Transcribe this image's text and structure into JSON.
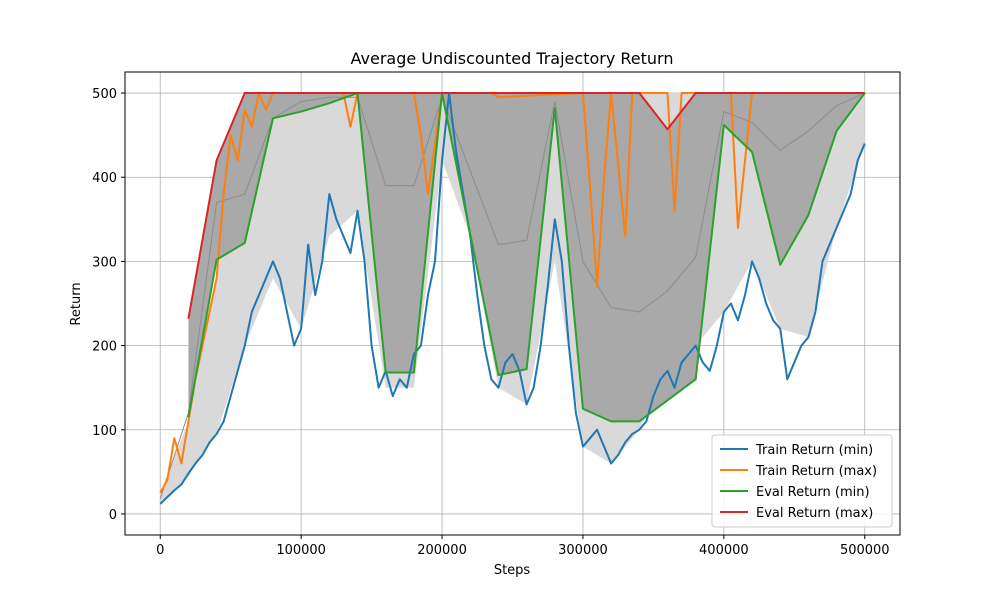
{
  "chart_data": {
    "type": "line",
    "title": "Average Undiscounted Trajectory Return",
    "xlabel": "Steps",
    "ylabel": "Return",
    "xlim": [
      -25000,
      525000
    ],
    "ylim": [
      -25,
      525
    ],
    "xticks": [
      0,
      100000,
      200000,
      300000,
      400000,
      500000
    ],
    "xtick_labels": [
      "0",
      "100000",
      "200000",
      "300000",
      "400000",
      "500000"
    ],
    "yticks": [
      0,
      100,
      200,
      300,
      400,
      500
    ],
    "ytick_labels": [
      "0",
      "100",
      "200",
      "300",
      "400",
      "500"
    ],
    "grid": true,
    "legend_position": "lower-right",
    "colors": {
      "train_min": "#1f77b4",
      "train_max": "#ff7f0e",
      "eval_min": "#2ca02c",
      "eval_max": "#d62728",
      "band_light": "#d9d9d9",
      "band_dark": "#a9a9a9",
      "mean_gray": "#8c8c8c"
    },
    "series": [
      {
        "name": "Train Return (min)",
        "x": [
          0,
          5000,
          10000,
          15000,
          20000,
          25000,
          30000,
          35000,
          40000,
          45000,
          50000,
          55000,
          60000,
          65000,
          70000,
          75000,
          80000,
          85000,
          90000,
          95000,
          100000,
          105000,
          110000,
          115000,
          120000,
          125000,
          130000,
          135000,
          140000,
          145000,
          150000,
          155000,
          160000,
          165000,
          170000,
          175000,
          180000,
          185000,
          190000,
          195000,
          200000,
          205000,
          210000,
          215000,
          220000,
          225000,
          230000,
          235000,
          240000,
          245000,
          250000,
          255000,
          260000,
          265000,
          270000,
          275000,
          280000,
          285000,
          290000,
          295000,
          300000,
          305000,
          310000,
          315000,
          320000,
          325000,
          330000,
          335000,
          340000,
          345000,
          350000,
          355000,
          360000,
          365000,
          370000,
          375000,
          380000,
          385000,
          390000,
          395000,
          400000,
          405000,
          410000,
          415000,
          420000,
          425000,
          430000,
          435000,
          440000,
          445000,
          450000,
          455000,
          460000,
          465000,
          470000,
          475000,
          480000,
          485000,
          490000,
          495000,
          500000
        ],
        "values": [
          12,
          20,
          28,
          35,
          48,
          60,
          70,
          85,
          95,
          110,
          140,
          170,
          200,
          240,
          260,
          280,
          300,
          280,
          240,
          200,
          220,
          320,
          260,
          300,
          380,
          350,
          330,
          310,
          360,
          300,
          200,
          150,
          170,
          140,
          160,
          150,
          190,
          200,
          260,
          300,
          420,
          500,
          430,
          380,
          330,
          260,
          200,
          160,
          150,
          180,
          190,
          170,
          130,
          150,
          200,
          270,
          350,
          300,
          200,
          120,
          80,
          90,
          100,
          80,
          60,
          70,
          85,
          95,
          100,
          110,
          140,
          160,
          170,
          150,
          180,
          190,
          200,
          180,
          170,
          200,
          240,
          250,
          230,
          260,
          300,
          280,
          250,
          230,
          220,
          160,
          180,
          200,
          210,
          240,
          300,
          320,
          340,
          360,
          380,
          420,
          440
        ]
      },
      {
        "name": "Train Return (max)",
        "x": [
          0,
          5000,
          10000,
          15000,
          20000,
          25000,
          30000,
          35000,
          40000,
          45000,
          50000,
          55000,
          60000,
          65000,
          70000,
          75000,
          80000,
          90000,
          100000,
          130000,
          135000,
          140000,
          180000,
          185000,
          190000,
          200000,
          235000,
          240000,
          300000,
          305000,
          310000,
          315000,
          320000,
          330000,
          335000,
          360000,
          365000,
          370000,
          400000,
          405000,
          410000,
          415000,
          420000,
          500000
        ],
        "values": [
          25,
          40,
          90,
          60,
          110,
          160,
          200,
          240,
          280,
          380,
          450,
          420,
          480,
          460,
          500,
          480,
          500,
          500,
          500,
          500,
          460,
          500,
          500,
          450,
          380,
          500,
          500,
          495,
          500,
          390,
          270,
          400,
          500,
          330,
          500,
          500,
          360,
          500,
          500,
          500,
          340,
          420,
          500,
          500
        ]
      },
      {
        "name": "Eval Return (min)",
        "x": [
          20000,
          40000,
          60000,
          80000,
          100000,
          120000,
          140000,
          160000,
          180000,
          200000,
          240000,
          260000,
          280000,
          300000,
          320000,
          340000,
          360000,
          380000,
          400000,
          420000,
          440000,
          460000,
          480000,
          500000
        ],
        "values": [
          115,
          302,
          322,
          470,
          478,
          488,
          500,
          168,
          168,
          500,
          165,
          172,
          482,
          125,
          110,
          110,
          135,
          160,
          462,
          430,
          296,
          355,
          455,
          500
        ]
      },
      {
        "name": "Eval Return (max)",
        "x": [
          20000,
          40000,
          60000,
          80000,
          100000,
          120000,
          140000,
          200000,
          240000,
          340000,
          360000,
          380000,
          400000,
          500000
        ],
        "values": [
          232,
          420,
          500,
          500,
          500,
          500,
          500,
          500,
          500,
          500,
          457,
          500,
          500,
          500
        ]
      }
    ],
    "band_dark": {
      "x": [
        20000,
        40000,
        60000,
        80000,
        100000,
        120000,
        140000,
        160000,
        180000,
        200000,
        240000,
        260000,
        280000,
        300000,
        320000,
        340000,
        360000,
        380000,
        400000,
        420000,
        440000,
        460000,
        480000,
        500000
      ],
      "lower": [
        115,
        302,
        322,
        470,
        478,
        488,
        500,
        168,
        168,
        500,
        165,
        172,
        482,
        125,
        110,
        110,
        135,
        160,
        462,
        430,
        296,
        355,
        455,
        500
      ],
      "upper": [
        232,
        420,
        500,
        500,
        500,
        500,
        500,
        500,
        500,
        500,
        500,
        500,
        500,
        500,
        500,
        500,
        457,
        500,
        500,
        500,
        500,
        500,
        500,
        500
      ]
    },
    "band_light": {
      "x": [
        0,
        20000,
        40000,
        60000,
        80000,
        100000,
        120000,
        140000,
        160000,
        180000,
        200000,
        220000,
        240000,
        260000,
        280000,
        300000,
        320000,
        340000,
        360000,
        380000,
        400000,
        420000,
        440000,
        460000,
        480000,
        500000
      ],
      "lower": [
        12,
        45,
        95,
        200,
        280,
        220,
        330,
        360,
        150,
        150,
        420,
        330,
        150,
        130,
        300,
        80,
        60,
        100,
        170,
        200,
        240,
        300,
        220,
        210,
        340,
        440
      ],
      "upper": [
        25,
        110,
        280,
        480,
        500,
        500,
        500,
        500,
        500,
        500,
        500,
        500,
        500,
        500,
        500,
        500,
        500,
        500,
        500,
        500,
        500,
        500,
        500,
        500,
        500,
        500
      ]
    },
    "mean_gray": {
      "x": [
        0,
        20000,
        40000,
        60000,
        80000,
        100000,
        120000,
        140000,
        160000,
        180000,
        200000,
        240000,
        260000,
        280000,
        300000,
        320000,
        340000,
        360000,
        380000,
        400000,
        420000,
        440000,
        460000,
        480000,
        500000
      ],
      "values": [
        18,
        120,
        370,
        380,
        470,
        490,
        495,
        495,
        390,
        390,
        495,
        320,
        325,
        490,
        300,
        245,
        240,
        265,
        305,
        478,
        465,
        432,
        455,
        485,
        500
      ]
    }
  }
}
